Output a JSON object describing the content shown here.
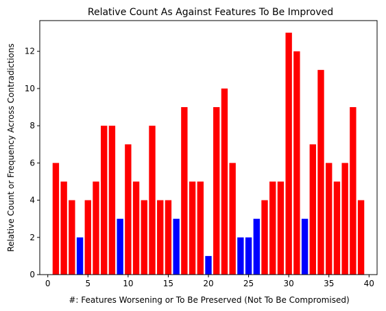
{
  "chart_data": {
    "type": "bar",
    "title": "Relative Count As Against Features To Be Improved",
    "xlabel": "#: Features Worsening or To Be Preserved (Not To Be Compromised)",
    "ylabel": "Relative Count or Frequency Across Contradictions",
    "xlim": [
      -1,
      41
    ],
    "ylim": [
      0,
      13.65
    ],
    "xticks": [
      0,
      5,
      10,
      15,
      20,
      25,
      30,
      35,
      40
    ],
    "yticks": [
      0,
      2,
      4,
      6,
      8,
      10,
      12
    ],
    "grid": false,
    "colors": {
      "default": "#ff0000",
      "highlight": "#0000ff"
    },
    "x": [
      1,
      2,
      3,
      4,
      5,
      6,
      7,
      8,
      9,
      10,
      11,
      12,
      13,
      14,
      15,
      16,
      17,
      18,
      19,
      20,
      21,
      22,
      23,
      24,
      25,
      26,
      27,
      28,
      29,
      30,
      31,
      32,
      33,
      34,
      35,
      36,
      37,
      38,
      39
    ],
    "values": [
      6,
      5,
      4,
      2,
      4,
      5,
      8,
      8,
      3,
      7,
      5,
      4,
      8,
      4,
      4,
      3,
      9,
      5,
      5,
      1,
      9,
      10,
      6,
      2,
      2,
      3,
      4,
      5,
      5,
      13,
      12,
      3,
      7,
      11,
      6,
      5,
      6,
      9,
      4
    ],
    "bar_colors": [
      "#ff0000",
      "#ff0000",
      "#ff0000",
      "#0000ff",
      "#ff0000",
      "#ff0000",
      "#ff0000",
      "#ff0000",
      "#0000ff",
      "#ff0000",
      "#ff0000",
      "#ff0000",
      "#ff0000",
      "#ff0000",
      "#ff0000",
      "#0000ff",
      "#ff0000",
      "#ff0000",
      "#ff0000",
      "#0000ff",
      "#ff0000",
      "#ff0000",
      "#ff0000",
      "#0000ff",
      "#0000ff",
      "#0000ff",
      "#ff0000",
      "#ff0000",
      "#ff0000",
      "#ff0000",
      "#ff0000",
      "#0000ff",
      "#ff0000",
      "#ff0000",
      "#ff0000",
      "#ff0000",
      "#ff0000",
      "#ff0000",
      "#ff0000"
    ]
  }
}
